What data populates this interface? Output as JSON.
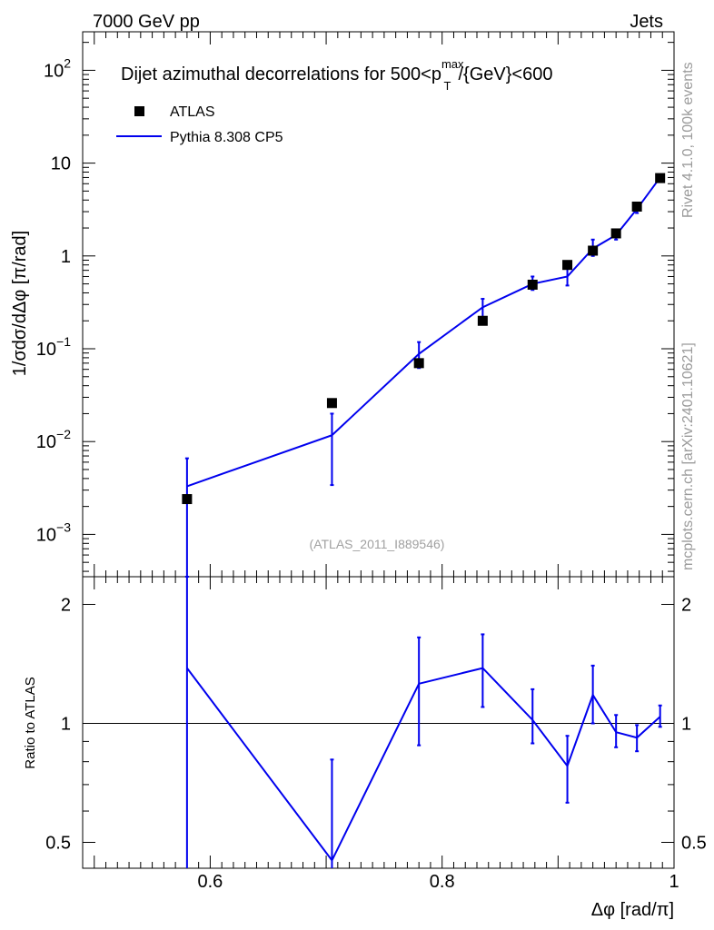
{
  "header": {
    "energy_label": "7000 GeV pp",
    "process_label": "Jets"
  },
  "side_labels": {
    "rivet": "Rivet 4.1.0,  100k events",
    "mcplots": "mcplots.cern.ch [arXiv:2401.10621]"
  },
  "chart_data": [
    {
      "type": "scatter",
      "panel": "main",
      "title": "Dijet azimuthal decorrelations for 500<p_T^max/{GeV}<600",
      "title_parts": {
        "prefix": "Dijet azimuthal decorrelations for 500<p",
        "sup": "max",
        "sub": "T",
        "suffix": "/{GeV}<600"
      },
      "xlabel": "Δφ [rad/π]",
      "ylabel": "1/σdσ/dΔφ [π/rad]",
      "yscale": "log",
      "xlim": [
        0.49,
        1.0
      ],
      "ylim": [
        0.00035,
        260
      ],
      "y_tick_labels": [
        {
          "value": 0.001,
          "base": "10",
          "exp": "−3"
        },
        {
          "value": 0.01,
          "base": "10",
          "exp": "−2"
        },
        {
          "value": 0.1,
          "base": "10",
          "exp": "−1"
        },
        {
          "value": 1,
          "base": "1",
          "exp": ""
        },
        {
          "value": 10,
          "base": "10",
          "exp": ""
        },
        {
          "value": 100,
          "base": "10",
          "exp": "2"
        }
      ],
      "watermark": "(ATLAS_2011_I889546)",
      "legend": [
        {
          "name": "ATLAS",
          "style": "marker",
          "color": "#000000"
        },
        {
          "name": "Pythia 8.308 CP5",
          "style": "line",
          "color": "#0000ee"
        }
      ],
      "series": [
        {
          "name": "ATLAS",
          "color": "#000000",
          "x": [
            0.58,
            0.705,
            0.78,
            0.835,
            0.878,
            0.908,
            0.93,
            0.95,
            0.968,
            0.988
          ],
          "y": [
            0.0024,
            0.026,
            0.07,
            0.2,
            0.49,
            0.8,
            1.14,
            1.75,
            3.4,
            6.9
          ]
        },
        {
          "name": "Pythia 8.308 CP5",
          "color": "#0000ee",
          "x": [
            0.58,
            0.705,
            0.78,
            0.835,
            0.878,
            0.908,
            0.93,
            0.95,
            0.968,
            0.988
          ],
          "y": [
            0.0033,
            0.0117,
            0.088,
            0.28,
            0.5,
            0.6,
            1.2,
            1.68,
            3.2,
            7.0
          ],
          "err_low": [
            0.00035,
            0.0034,
            0.062,
            0.22,
            0.43,
            0.48,
            1.0,
            1.5,
            2.9,
            6.6
          ],
          "err_high": [
            0.0066,
            0.02,
            0.118,
            0.345,
            0.6,
            0.76,
            1.5,
            1.9,
            3.6,
            7.4
          ]
        }
      ]
    },
    {
      "type": "line",
      "panel": "ratio",
      "xlabel": "Δφ [rad/π]",
      "ylabel": "Ratio to ATLAS",
      "yscale": "log",
      "ylim": [
        0.43,
        2.35
      ],
      "x_ticks": [
        0.6,
        0.8,
        1
      ],
      "x_tick_labels": [
        "0.6",
        "0.8",
        "1"
      ],
      "y_ticks": [
        0.5,
        1,
        2
      ],
      "y_tick_labels": [
        "0.5",
        "1",
        "2"
      ],
      "reference_line": 1,
      "series": [
        {
          "name": "Pythia 8.308 CP5 / ATLAS",
          "color": "#0000ee",
          "x": [
            0.58,
            0.705,
            0.78,
            0.835,
            0.878,
            0.908,
            0.93,
            0.95,
            0.968,
            0.988
          ],
          "y": [
            1.38,
            0.45,
            1.26,
            1.38,
            1.02,
            0.78,
            1.18,
            0.95,
            0.92,
            1.04
          ],
          "err_low": [
            0.2,
            0.2,
            0.88,
            1.1,
            0.89,
            0.63,
            1.0,
            0.87,
            0.85,
            0.98
          ],
          "err_high": [
            4.0,
            0.81,
            1.65,
            1.68,
            1.22,
            0.93,
            1.4,
            1.05,
            0.99,
            1.11
          ]
        }
      ]
    }
  ]
}
